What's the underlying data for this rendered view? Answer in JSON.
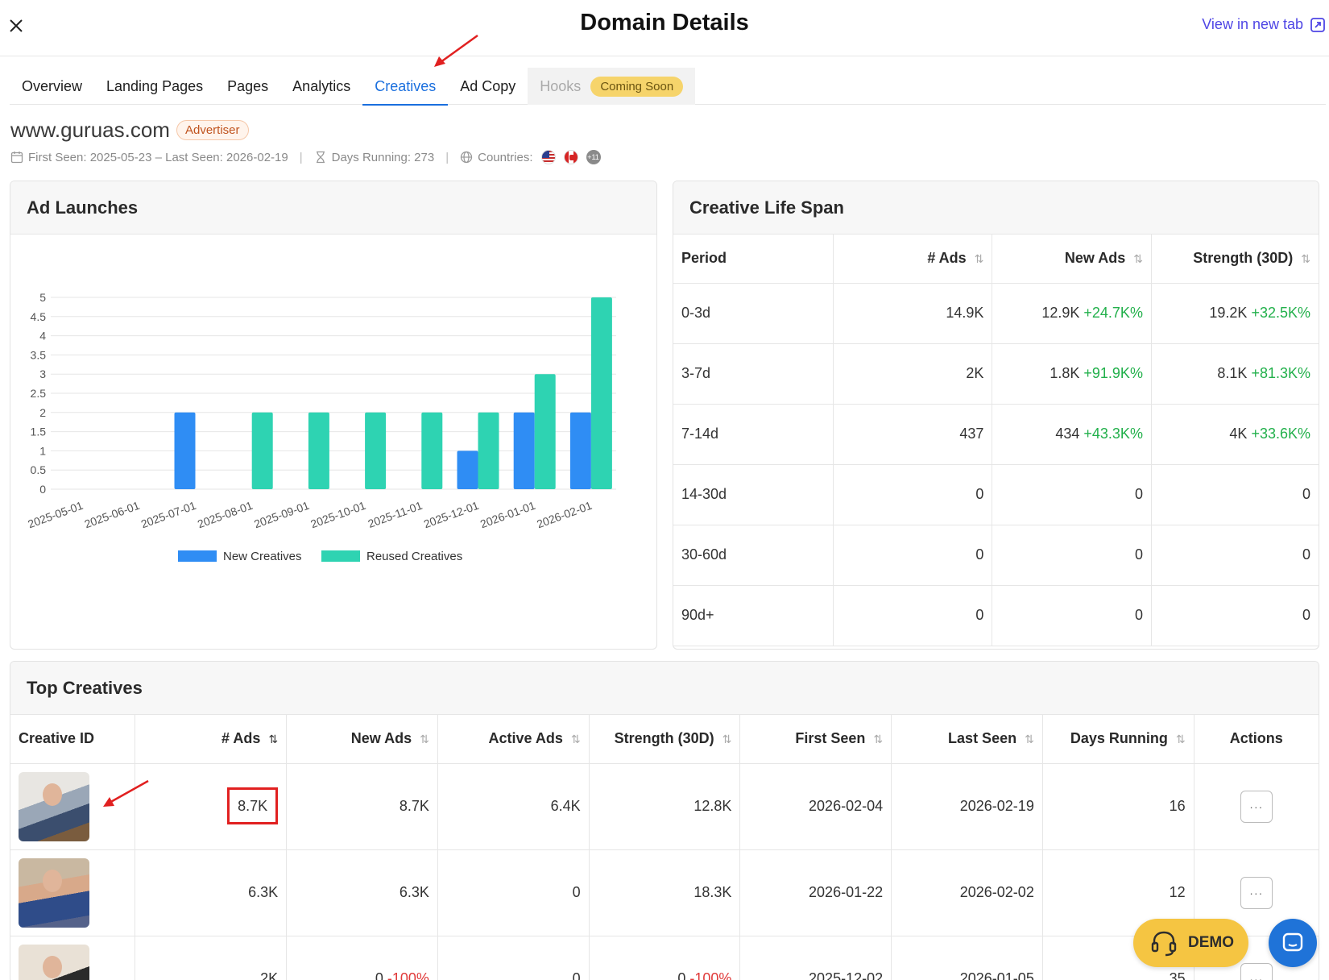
{
  "header": {
    "title": "Domain Details",
    "view_new_tab": "View in new tab"
  },
  "tabs": [
    {
      "label": "Overview"
    },
    {
      "label": "Landing Pages"
    },
    {
      "label": "Pages"
    },
    {
      "label": "Analytics"
    },
    {
      "label": "Creatives",
      "active": true
    },
    {
      "label": "Ad Copy"
    },
    {
      "label": "Hooks",
      "badge": "Coming Soon"
    }
  ],
  "domain": {
    "name": "www.guruas.com",
    "badge": "Advertiser",
    "first_last_seen": "First Seen: 2025-05-23 – Last Seen: 2026-02-19",
    "days_running": "Days Running: 273",
    "countries_label": "Countries:",
    "countries_more": "+11"
  },
  "ad_launches": {
    "title": "Ad Launches",
    "chart_data": {
      "type": "bar",
      "categories": [
        "2025-05-01",
        "2025-06-01",
        "2025-07-01",
        "2025-08-01",
        "2025-09-01",
        "2025-10-01",
        "2025-11-01",
        "2025-12-01",
        "2026-01-01",
        "2026-02-01"
      ],
      "series": [
        {
          "name": "New Creatives",
          "color": "#2f8df4",
          "values": [
            0,
            0,
            2,
            0,
            0,
            0,
            0,
            1,
            2,
            2
          ]
        },
        {
          "name": "Reused Creatives",
          "color": "#2ed3b2",
          "values": [
            0,
            0,
            0,
            2,
            2,
            2,
            2,
            2,
            3,
            5
          ]
        }
      ],
      "yticks": [
        "0",
        "0.5",
        "1",
        "1.5",
        "2",
        "2.5",
        "3",
        "3.5",
        "4",
        "4.5",
        "5"
      ],
      "ylim": [
        0,
        5
      ],
      "legend": "bottom-center"
    }
  },
  "life_span": {
    "title": "Creative Life Span",
    "columns": [
      "Period",
      "# Ads",
      "New Ads",
      "Strength (30D)"
    ],
    "rows": [
      {
        "period": "0-3d",
        "ads": "14.9K",
        "new_ads": "12.9K",
        "new_ads_delta": "+24.7K%",
        "strength": "19.2K",
        "strength_delta": "+32.5K%"
      },
      {
        "period": "3-7d",
        "ads": "2K",
        "new_ads": "1.8K",
        "new_ads_delta": "+91.9K%",
        "strength": "8.1K",
        "strength_delta": "+81.3K%"
      },
      {
        "period": "7-14d",
        "ads": "437",
        "new_ads": "434",
        "new_ads_delta": "+43.3K%",
        "strength": "4K",
        "strength_delta": "+33.6K%"
      },
      {
        "period": "14-30d",
        "ads": "0",
        "new_ads": "0",
        "new_ads_delta": "",
        "strength": "0",
        "strength_delta": ""
      },
      {
        "period": "30-60d",
        "ads": "0",
        "new_ads": "0",
        "new_ads_delta": "",
        "strength": "0",
        "strength_delta": ""
      },
      {
        "period": "90d+",
        "ads": "0",
        "new_ads": "0",
        "new_ads_delta": "",
        "strength": "0",
        "strength_delta": ""
      }
    ]
  },
  "top_creatives": {
    "title": "Top Creatives",
    "columns": [
      "Creative ID",
      "# Ads",
      "New Ads",
      "Active Ads",
      "Strength (30D)",
      "First Seen",
      "Last Seen",
      "Days Running",
      "Actions"
    ],
    "rows": [
      {
        "ads": "8.7K",
        "new_ads": "8.7K",
        "new_ads_delta": "",
        "active_ads": "6.4K",
        "strength": "12.8K",
        "strength_delta": "",
        "first_seen": "2026-02-04",
        "last_seen": "2026-02-19",
        "days": "16",
        "action": "···"
      },
      {
        "ads": "6.3K",
        "new_ads": "6.3K",
        "new_ads_delta": "",
        "active_ads": "0",
        "strength": "18.3K",
        "strength_delta": "",
        "first_seen": "2026-01-22",
        "last_seen": "2026-02-02",
        "days": "12",
        "action": "···"
      },
      {
        "ads": "2K",
        "new_ads": "0",
        "new_ads_delta": "-100%",
        "active_ads": "0",
        "strength": "0",
        "strength_delta": "-100%",
        "first_seen": "2025-12-02",
        "last_seen": "2026-01-05",
        "days": "35",
        "action": "···"
      }
    ]
  },
  "floating": {
    "demo": "DEMO"
  }
}
